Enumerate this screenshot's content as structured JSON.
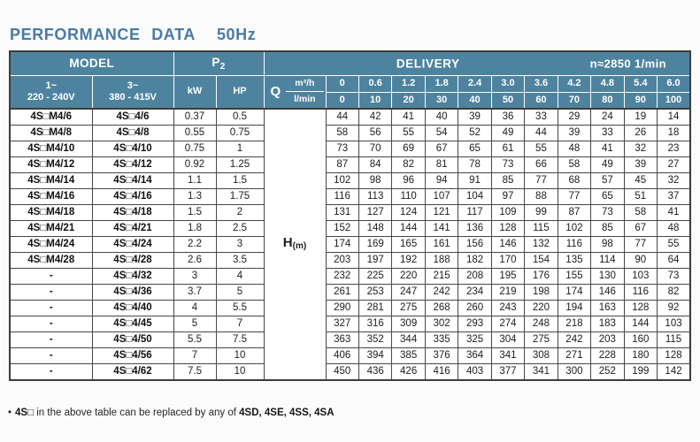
{
  "title": {
    "main": "PERFORMANCE DATA",
    "freq": "50Hz"
  },
  "colors": {
    "header_bg": "#4e83a0",
    "title_color": "#4a7ba3",
    "border_dark": "#474747",
    "page_bg": "#fbfbfb"
  },
  "table": {
    "header": {
      "model": "MODEL",
      "p2_main": "P",
      "p2_sub": "2",
      "delivery": "DELIVERY",
      "speed": "n≈2850 1/min",
      "phase1_line1": "1~",
      "phase1_line2": "220 - 240V",
      "phase3_line1": "3~",
      "phase3_line2": "380 - 415V",
      "kw": "kW",
      "hp": "HP",
      "q": "Q",
      "unit_top": "m³/h",
      "unit_bottom": "l/min",
      "flow_m3h": [
        "0",
        "0.6",
        "1.2",
        "1.8",
        "2.4",
        "3.0",
        "3.6",
        "4.2",
        "4.8",
        "5.4",
        "6.0"
      ],
      "flow_lmin": [
        "0",
        "10",
        "20",
        "30",
        "40",
        "50",
        "60",
        "70",
        "80",
        "90",
        "100"
      ]
    },
    "h_label": {
      "main": "H",
      "sub": "(m)"
    },
    "rows": [
      {
        "m1": "4S□M4/6",
        "m2": "4S□4/6",
        "kw": "0.37",
        "hp": "0.5",
        "v": [
          44,
          42,
          41,
          40,
          39,
          36,
          33,
          29,
          24,
          19,
          14
        ]
      },
      {
        "m1": "4S□M4/8",
        "m2": "4S□4/8",
        "kw": "0.55",
        "hp": "0.75",
        "v": [
          58,
          56,
          55,
          54,
          52,
          49,
          44,
          39,
          33,
          26,
          18
        ]
      },
      {
        "m1": "4S□M4/10",
        "m2": "4S□4/10",
        "kw": "0.75",
        "hp": "1",
        "v": [
          73,
          70,
          69,
          67,
          65,
          61,
          55,
          48,
          41,
          32,
          23
        ]
      },
      {
        "m1": "4S□M4/12",
        "m2": "4S□4/12",
        "kw": "0.92",
        "hp": "1.25",
        "v": [
          87,
          84,
          82,
          81,
          78,
          73,
          66,
          58,
          49,
          39,
          27
        ]
      },
      {
        "m1": "4S□M4/14",
        "m2": "4S□4/14",
        "kw": "1.1",
        "hp": "1.5",
        "v": [
          102,
          98,
          96,
          94,
          91,
          85,
          77,
          68,
          57,
          45,
          32
        ]
      },
      {
        "m1": "4S□M4/16",
        "m2": "4S□4/16",
        "kw": "1.3",
        "hp": "1.75",
        "v": [
          116,
          113,
          110,
          107,
          104,
          97,
          88,
          77,
          65,
          51,
          37
        ]
      },
      {
        "m1": "4S□M4/18",
        "m2": "4S□4/18",
        "kw": "1.5",
        "hp": "2",
        "v": [
          131,
          127,
          124,
          121,
          117,
          109,
          99,
          87,
          73,
          58,
          41
        ]
      },
      {
        "m1": "4S□M4/21",
        "m2": "4S□4/21",
        "kw": "1.8",
        "hp": "2.5",
        "v": [
          152,
          148,
          144,
          141,
          136,
          128,
          115,
          102,
          85,
          67,
          48
        ]
      },
      {
        "m1": "4S□M4/24",
        "m2": "4S□4/24",
        "kw": "2.2",
        "hp": "3",
        "v": [
          174,
          169,
          165,
          161,
          156,
          146,
          132,
          116,
          98,
          77,
          55
        ]
      },
      {
        "m1": "4S□M4/28",
        "m2": "4S□4/28",
        "kw": "2.6",
        "hp": "3.5",
        "v": [
          203,
          197,
          192,
          188,
          182,
          170,
          154,
          135,
          114,
          90,
          64
        ]
      },
      {
        "m1": "-",
        "m2": "4S□4/32",
        "kw": "3",
        "hp": "4",
        "v": [
          232,
          225,
          220,
          215,
          208,
          195,
          176,
          155,
          130,
          103,
          73
        ]
      },
      {
        "m1": "-",
        "m2": "4S□4/36",
        "kw": "3.7",
        "hp": "5",
        "v": [
          261,
          253,
          247,
          242,
          234,
          219,
          198,
          174,
          146,
          116,
          82
        ]
      },
      {
        "m1": "-",
        "m2": "4S□4/40",
        "kw": "4",
        "hp": "5.5",
        "v": [
          290,
          281,
          275,
          268,
          260,
          243,
          220,
          194,
          163,
          128,
          92
        ]
      },
      {
        "m1": "-",
        "m2": "4S□4/45",
        "kw": "5",
        "hp": "7",
        "v": [
          327,
          316,
          309,
          302,
          293,
          274,
          248,
          218,
          183,
          144,
          103
        ]
      },
      {
        "m1": "-",
        "m2": "4S□4/50",
        "kw": "5.5",
        "hp": "7.5",
        "v": [
          363,
          352,
          344,
          335,
          325,
          304,
          275,
          242,
          203,
          160,
          115
        ]
      },
      {
        "m1": "-",
        "m2": "4S□4/56",
        "kw": "7",
        "hp": "10",
        "v": [
          406,
          394,
          385,
          376,
          364,
          341,
          308,
          271,
          228,
          180,
          128
        ]
      },
      {
        "m1": "-",
        "m2": "4S□4/62",
        "kw": "7.5",
        "hp": "10",
        "v": [
          450,
          436,
          426,
          416,
          403,
          377,
          341,
          300,
          252,
          199,
          142
        ]
      }
    ]
  },
  "footnote": {
    "bullet": "•",
    "bold1": "4S□",
    "text": " in the above table can be replaced by any of ",
    "bold2": "4SD, 4SE, 4SS, 4SA"
  }
}
